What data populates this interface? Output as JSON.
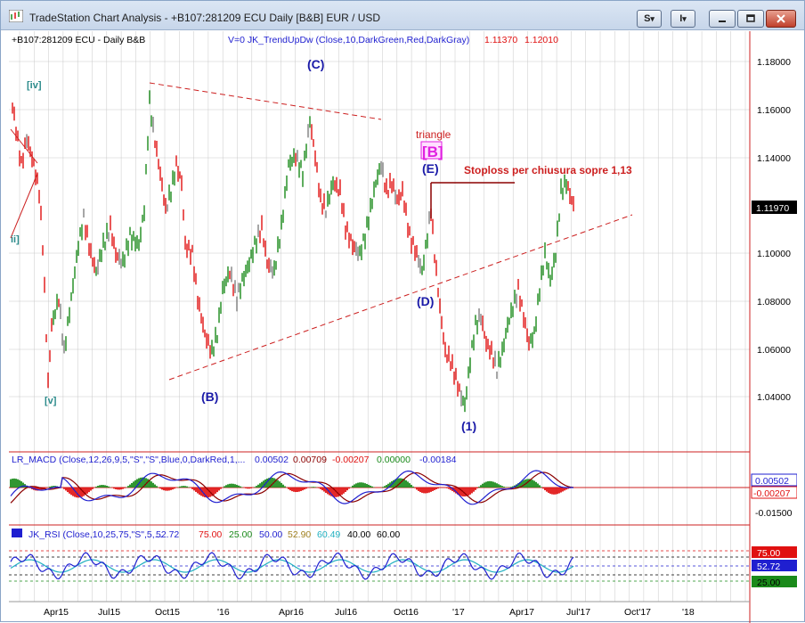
{
  "window": {
    "title": "TradeStation Chart Analysis - +B107:281209 ECU Daily [B&B] EUR / USD",
    "s_button": "S",
    "i_button": "I",
    "dropdown_glyph": "▾"
  },
  "chart_header": {
    "symbol": "+B107:281209 ECU - Daily  B&B",
    "indicator": "V=0  JK_TrendUpDw  (Close,10,DarkGreen,Red,DarkGray)",
    "value1": "1.11370",
    "value2": "1.12010"
  },
  "price_axis": {
    "ticks": [
      "1.18000",
      "1.16000",
      "1.14000",
      "1.10000",
      "1.08000",
      "1.06000",
      "1.04000"
    ],
    "last_price": "1.11970"
  },
  "annotations": {
    "wave_c": "(C)",
    "wave_iv": "[iv]",
    "wave_ii": "ii]",
    "wave_v": "[v]",
    "wave_b_low": "(B)",
    "wave_e": "(E)",
    "wave_d": "(D)",
    "wave_1": "(1)",
    "triangle": "triangle",
    "wave_b_box": "[B]",
    "stoploss": "Stoploss per chiusura sopre 1,13"
  },
  "macd": {
    "label": "LR_MACD (Close,12,26,9,5,\"S\",\"S\",Blue,0,DarkRed,1,...",
    "v1": "0.00502",
    "v2": "0.00709",
    "v3": "-0.00207",
    "v4": "0.00000",
    "v5": "-0.00184",
    "axis_v1": "0.00502",
    "axis_v2": "-0.00207",
    "axis_tick": "-0.01500",
    "colors": {
      "macd": "#1f1fd0",
      "signal": "#8b0000",
      "hist_pos": "#1a8a1a",
      "hist_neg": "#e01010"
    }
  },
  "rsi": {
    "label": "JK_RSI (Close,10,25,75,\"S\",5,...",
    "v1": "52.72",
    "v2": "75.00",
    "v3": "25.00",
    "v4": "50.00",
    "v5": "52.90",
    "v6": "60.49",
    "v7": "40.00",
    "v8": "60.00",
    "axis_top": "75.00",
    "axis_mid": "52.72",
    "axis_bot": "25.00"
  },
  "time_axis": {
    "labels": [
      "Apr15",
      "Jul15",
      "Oct15",
      "'16",
      "Apr16",
      "Jul16",
      "Oct16",
      "'17",
      "Apr17",
      "Jul'17",
      "Oct'17",
      "'18"
    ]
  },
  "colors": {
    "up_bar": "#1a8a1a",
    "down_bar": "#e01010",
    "neutral_bar": "#808080",
    "trendline": "#cc1f1f",
    "wave_label": "#1a1aa8",
    "magenta": "#e020e0",
    "grid": "#c8c8c8",
    "right_border": "#cc2020",
    "last_price_bg": "#000000"
  }
}
